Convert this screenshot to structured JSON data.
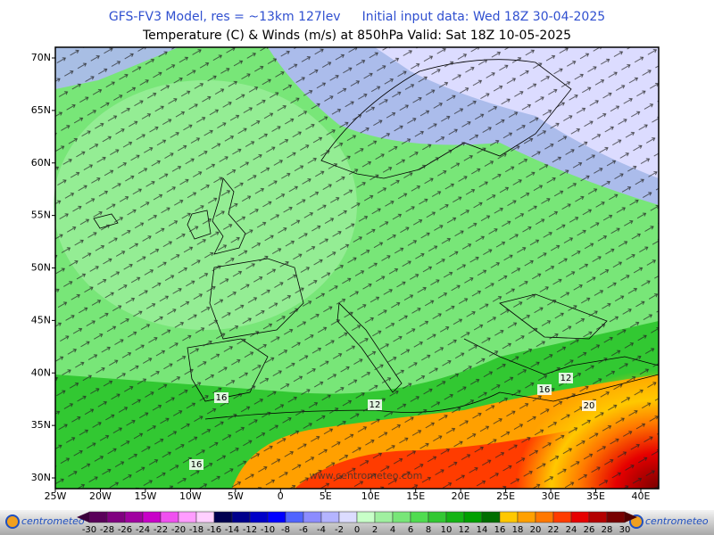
{
  "header": {
    "model": "GFS-FV3 Model, res = ~13km 127lev",
    "init": "Initial input data: Wed 18Z 30-04-2025",
    "subtitle": "Temperature (C) & Winds (m/s) at 850hPa  Valid: Sat 18Z 10-05-2025"
  },
  "map": {
    "lat_labels": [
      "70N",
      "65N",
      "60N",
      "55N",
      "50N",
      "45N",
      "40N",
      "35N",
      "30N"
    ],
    "lon_labels": [
      "25W",
      "20W",
      "15W",
      "10W",
      "5W",
      "0",
      "5E",
      "10E",
      "15E",
      "20E",
      "25E",
      "30E",
      "35E",
      "40E"
    ],
    "watermark": "www.centrometeo.com",
    "contour_labels": [
      "16",
      "12",
      "16",
      "12",
      "20",
      "16"
    ]
  },
  "legend": {
    "labels": [
      -30,
      -28,
      -26,
      -24,
      -22,
      -20,
      -18,
      -16,
      -14,
      -12,
      -10,
      -8,
      -6,
      -4,
      -2,
      0,
      2,
      4,
      6,
      8,
      10,
      12,
      14,
      16,
      18,
      20,
      22,
      24,
      26,
      28,
      30
    ],
    "colors": [
      "#5a005a",
      "#800080",
      "#a000a0",
      "#c800c8",
      "#f050f0",
      "#ff9cff",
      "#ffd0ff",
      "#000050",
      "#00008c",
      "#0000c8",
      "#0000ff",
      "#5064ff",
      "#8c8cff",
      "#b4b4ff",
      "#dcdcff",
      "#c8ffc8",
      "#a0f0a0",
      "#78e678",
      "#50dc50",
      "#32c832",
      "#14b414",
      "#00a000",
      "#006e00",
      "#ffc800",
      "#ffa000",
      "#ff7800",
      "#ff3c00",
      "#e60000",
      "#b40000",
      "#780000"
    ]
  },
  "footer": {
    "logo_left": "centrometeo",
    "logo_right": "centrometeo"
  }
}
